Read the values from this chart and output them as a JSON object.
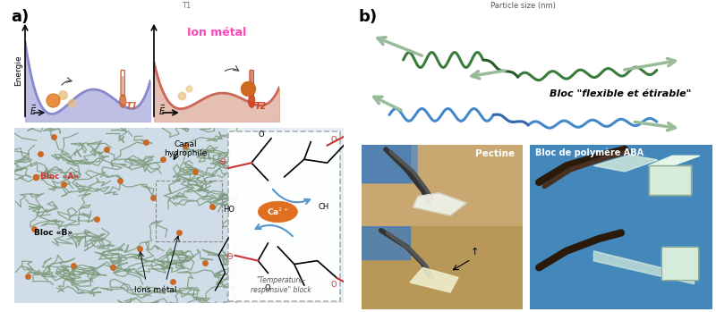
{
  "figsize": [
    8.0,
    3.49
  ],
  "dpi": 100,
  "bg_color": "#ffffff",
  "label_a": "a)",
  "label_b": "b)",
  "label_fontsize": 13,
  "label_fontweight": "bold",
  "top_text_left": "T1",
  "top_text_right": "Particle size (nm)",
  "ion_metal_text": "Ion métal",
  "ion_metal_color": "#ff44bb",
  "canal_text": "Canal\nhydrophile",
  "bloc_a_text": "Bloc «A»",
  "bloc_b_text": "Bloc «B»",
  "ions_metal_text": "Ions métal",
  "temp_block_text": "\"Temperature-\nresponsive\" block",
  "bloc_flexible_text": "Bloc \"flexible et étirable\"",
  "pectine_text": "Pectine",
  "bloc_aba_text": "Bloc de polymère ABA",
  "energie_text": "Energie",
  "energy_curve1_color": "#8888cc",
  "energy_curve1_fill": "#aaaadd",
  "energy_curve2_color": "#cc6655",
  "energy_curve2_fill": "#ddaa99",
  "polymer_network_color": "#7a9a7a",
  "polymer_bg_left": "#c8dde8",
  "polymer_bg_right": "#ddeaf5",
  "ion_color": "#d06820",
  "ion_color2": "#e89040",
  "chem_box_color": "#bbbbbb",
  "ca_ion_color": "#e07020",
  "arrow_green": "#99bb99",
  "chain_green": "#3a7a3a",
  "chain_blue": "#4488cc",
  "photo_brown": "#9a8060",
  "photo_blue": "#5090c0",
  "t1_color": "#cc6633",
  "t2_color": "#cc4422"
}
